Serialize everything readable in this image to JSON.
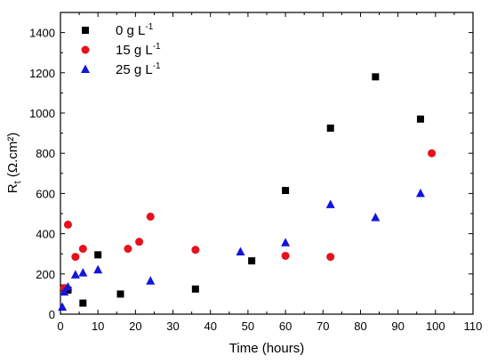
{
  "chart_data": {
    "type": "scatter",
    "xlabel": "Time (hours)",
    "ylabel": {
      "main": "R",
      "subscript": "t",
      "units": " (Ω.cm²)"
    },
    "xlim": [
      0,
      110
    ],
    "ylim": [
      0,
      1500
    ],
    "xticks": [
      0,
      10,
      20,
      30,
      40,
      50,
      60,
      70,
      80,
      90,
      100,
      110
    ],
    "yticks": [
      0,
      200,
      400,
      600,
      800,
      1000,
      1200,
      1400
    ],
    "grid": false,
    "legend_position": "top-left",
    "series": [
      {
        "name": "0 g L",
        "name_sup": "-1",
        "marker": "square",
        "color": "#000000",
        "points": [
          [
            1,
            130
          ],
          [
            2,
            120
          ],
          [
            6,
            55
          ],
          [
            10,
            295
          ],
          [
            16,
            100
          ],
          [
            36,
            125
          ],
          [
            51,
            265
          ],
          [
            60,
            615
          ],
          [
            72,
            925
          ],
          [
            84,
            1180
          ],
          [
            96,
            970
          ]
        ]
      },
      {
        "name": "15 g L",
        "name_sup": "-1",
        "marker": "circle",
        "color": "#e8101b",
        "points": [
          [
            1,
            130
          ],
          [
            2,
            445
          ],
          [
            4,
            285
          ],
          [
            6,
            325
          ],
          [
            18,
            325
          ],
          [
            21,
            360
          ],
          [
            24,
            485
          ],
          [
            36,
            320
          ],
          [
            60,
            290
          ],
          [
            72,
            285
          ],
          [
            99,
            800
          ]
        ]
      },
      {
        "name": "25 g L",
        "name_sup": "-1",
        "marker": "triangle",
        "color": "#1414dc",
        "points": [
          [
            0.5,
            35
          ],
          [
            1,
            110
          ],
          [
            2,
            135
          ],
          [
            4,
            195
          ],
          [
            6,
            205
          ],
          [
            10,
            220
          ],
          [
            24,
            165
          ],
          [
            48,
            310
          ],
          [
            60,
            355
          ],
          [
            72,
            545
          ],
          [
            84,
            480
          ],
          [
            96,
            600
          ]
        ]
      }
    ]
  }
}
